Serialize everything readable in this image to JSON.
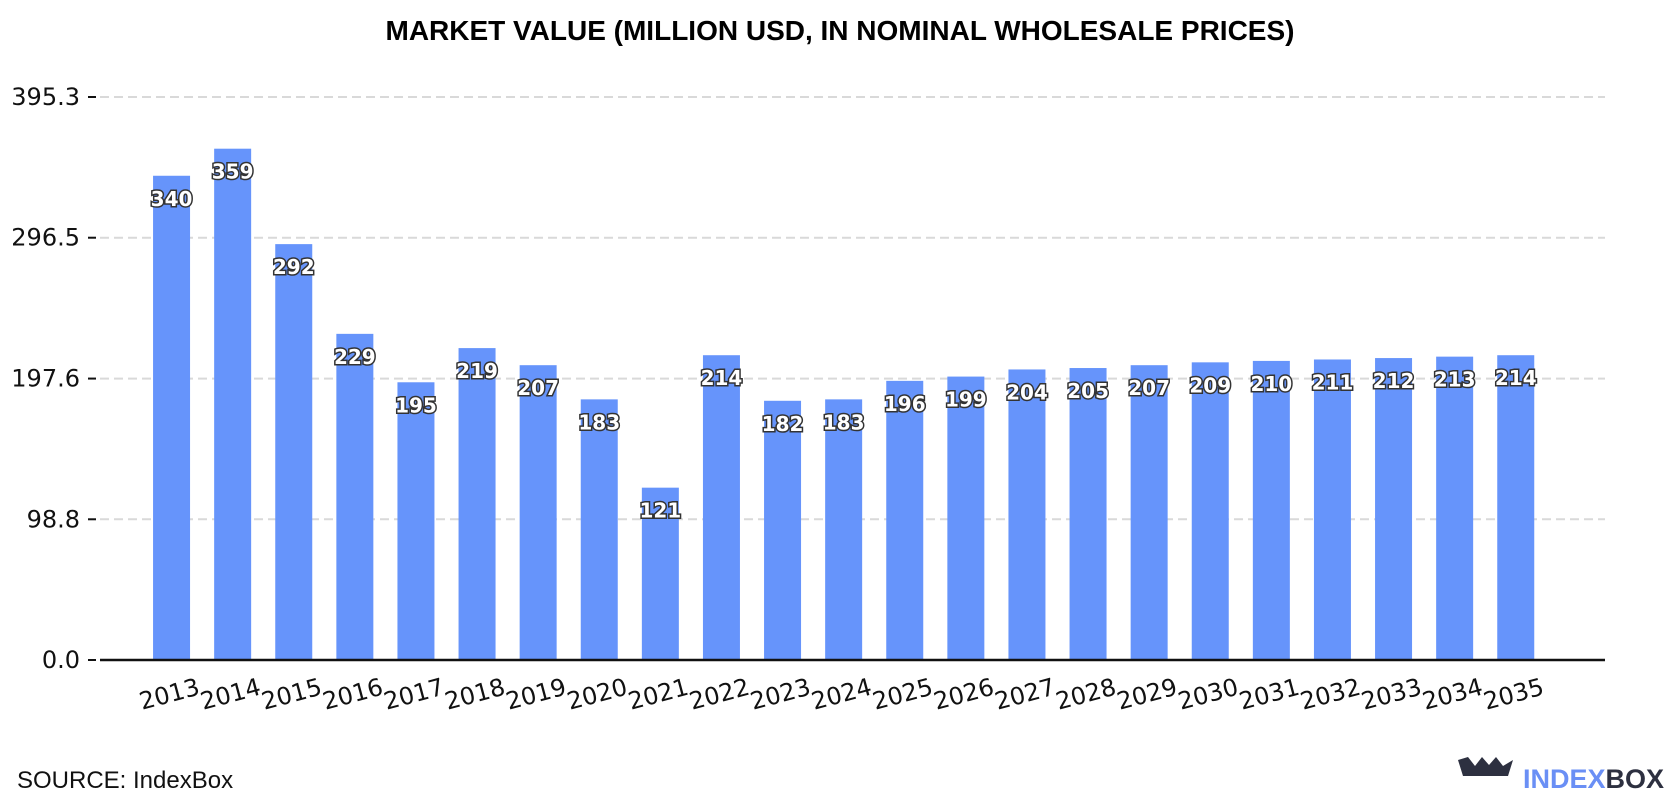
{
  "chart_data": {
    "type": "bar",
    "title": "MARKET VALUE (MILLION USD, IN NOMINAL WHOLESALE PRICES)",
    "categories": [
      "2013",
      "2014",
      "2015",
      "2016",
      "2017",
      "2018",
      "2019",
      "2020",
      "2021",
      "2022",
      "2023",
      "2024",
      "2025",
      "2026",
      "2027",
      "2028",
      "2029",
      "2030",
      "2031",
      "2032",
      "2033",
      "2034",
      "2035"
    ],
    "values": [
      340,
      359,
      292,
      229,
      195,
      219,
      207,
      183,
      121,
      214,
      182,
      183,
      196,
      199,
      204,
      205,
      207,
      209,
      210,
      211,
      212,
      213,
      214
    ],
    "color": "#6694fb",
    "ylim": [
      0,
      395.3
    ],
    "yticks": [
      {
        "value": 0,
        "label": "0.0"
      },
      98.8,
      197.6,
      296.5,
      395.3
    ],
    "grid": true,
    "source": "SOURCE: IndexBox",
    "logo": [
      "INDEX",
      "BOX"
    ]
  }
}
